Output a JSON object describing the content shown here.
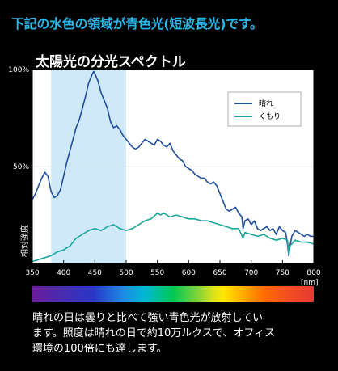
{
  "headline": "下記の水色の領域が青色光(短波長光)です。",
  "chart_data": {
    "type": "line",
    "title": "太陽光の分光スペクトル",
    "xlabel": "[nm]",
    "ylabel": "相対強度",
    "xlim": [
      350,
      800
    ],
    "ylim": [
      0,
      100
    ],
    "x_ticks": [
      "350",
      "400",
      "450",
      "500",
      "550",
      "600",
      "650",
      "700",
      "750",
      "800"
    ],
    "y_ticks": [
      "50%",
      "100%"
    ],
    "highlight_region": [
      380,
      500
    ],
    "legend_position": "top-right",
    "series": [
      {
        "name": "晴れ",
        "color": "#1f4e9c",
        "x": [
          350,
          355,
          360,
          365,
          370,
          375,
          380,
          385,
          390,
          395,
          400,
          405,
          410,
          415,
          420,
          425,
          430,
          435,
          440,
          445,
          448,
          450,
          455,
          460,
          465,
          470,
          475,
          480,
          485,
          490,
          495,
          500,
          505,
          510,
          515,
          520,
          525,
          530,
          535,
          540,
          545,
          550,
          555,
          560,
          565,
          570,
          575,
          580,
          585,
          590,
          595,
          600,
          605,
          610,
          615,
          620,
          625,
          630,
          635,
          640,
          645,
          650,
          655,
          660,
          665,
          670,
          675,
          680,
          685,
          687,
          690,
          695,
          700,
          705,
          710,
          715,
          720,
          725,
          730,
          735,
          740,
          745,
          750,
          755,
          758,
          760,
          762,
          765,
          770,
          775,
          780,
          785,
          790,
          795,
          800
        ],
        "y": [
          33,
          36,
          40,
          44,
          47,
          45,
          37,
          34,
          35,
          38,
          45,
          52,
          58,
          64,
          70,
          74,
          80,
          86,
          93,
          97,
          99,
          98,
          94,
          88,
          84,
          80,
          73,
          70,
          71,
          69,
          66,
          64,
          62,
          60,
          59,
          60,
          62,
          64,
          63,
          62,
          61,
          64,
          63,
          61,
          60,
          62,
          58,
          56,
          54,
          53,
          50,
          49,
          48,
          46,
          45,
          44,
          44,
          42,
          41,
          42,
          40,
          36,
          32,
          28,
          27,
          28,
          29,
          26,
          24,
          18,
          22,
          23,
          20,
          22,
          18,
          17,
          18,
          19,
          17,
          18,
          15,
          19,
          17,
          16,
          10,
          4,
          9,
          14,
          17,
          16,
          15,
          14,
          15,
          14,
          14
        ]
      },
      {
        "name": "くもり",
        "color": "#1aa89c",
        "x": [
          350,
          360,
          370,
          380,
          390,
          400,
          410,
          420,
          430,
          440,
          450,
          460,
          470,
          480,
          490,
          500,
          510,
          520,
          530,
          540,
          550,
          555,
          560,
          570,
          580,
          590,
          600,
          610,
          620,
          630,
          640,
          650,
          660,
          670,
          680,
          687,
          690,
          700,
          710,
          720,
          730,
          740,
          750,
          758,
          760,
          762,
          770,
          780,
          790,
          800
        ],
        "y": [
          1,
          2,
          3,
          4,
          6,
          7,
          9,
          13,
          15,
          17,
          18,
          17,
          19,
          20,
          18,
          17,
          18,
          20,
          22,
          23,
          26,
          25,
          26,
          24,
          25,
          24,
          23,
          23,
          22,
          22,
          21,
          20,
          19,
          18,
          18,
          13,
          16,
          15,
          14,
          15,
          13,
          12,
          13,
          12,
          5,
          9,
          12,
          11,
          11,
          10
        ]
      }
    ]
  },
  "caption": {
    "line1": "晴れの日は曇りと比べて強い青色光が放射してい",
    "line2": "ます。照度は晴れの日で約10万ルクスで、オフィス",
    "line3": "環境の100倍にも達します。"
  }
}
